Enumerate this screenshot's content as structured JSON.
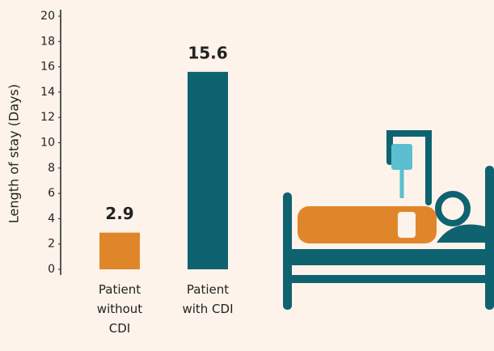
{
  "chart_data": {
    "type": "bar",
    "y_label": "Length of stay (Days)",
    "categories": [
      "Patient without CDI",
      "Patient with CDI"
    ],
    "values": [
      2.9,
      15.6
    ],
    "colors": [
      "#e0862a",
      "#0f6370"
    ],
    "ylim": [
      0,
      20
    ],
    "yticks": [
      0,
      2,
      4,
      6,
      8,
      10,
      12,
      14,
      16,
      18,
      20
    ]
  }
}
